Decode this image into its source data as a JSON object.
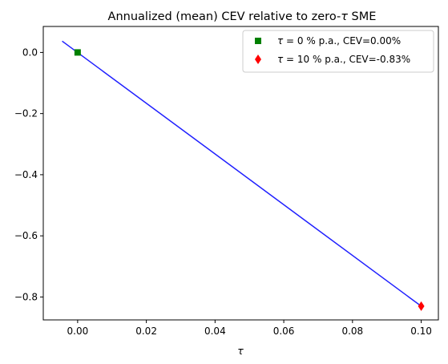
{
  "chart_data": {
    "type": "line",
    "title_prefix": "Annualized (mean) CEV relative to zero-",
    "title_symbol": "τ",
    "title_suffix": " SME",
    "xlabel": "τ",
    "ylabel": "",
    "xlim": [
      -0.01,
      0.105
    ],
    "ylim": [
      -0.875,
      0.085
    ],
    "xticks": [
      0.0,
      0.02,
      0.04,
      0.06,
      0.08,
      0.1
    ],
    "xtick_labels": [
      "0.00",
      "0.02",
      "0.04",
      "0.06",
      "0.08",
      "0.10"
    ],
    "yticks": [
      0.0,
      -0.2,
      -0.4,
      -0.6,
      -0.8
    ],
    "ytick_labels": [
      "0.0",
      "−0.2",
      "−0.4",
      "−0.6",
      "−0.8"
    ],
    "grid": false,
    "legend_placement": "top-right",
    "line": {
      "x": [
        -0.0045,
        0.1
      ],
      "y": [
        0.037,
        -0.83
      ],
      "color": "#1f1fff"
    },
    "points": [
      {
        "x": 0.0,
        "y": 0.0,
        "marker": "square",
        "color": "#008000",
        "label_symbol": "τ",
        "label_text": " = 0 % p.a., CEV=0.00%"
      },
      {
        "x": 0.1,
        "y": -0.83,
        "marker": "diamond",
        "color": "#ff0000",
        "label_symbol": "τ",
        "label_text": " = 10 % p.a., CEV=-0.83%"
      }
    ]
  }
}
